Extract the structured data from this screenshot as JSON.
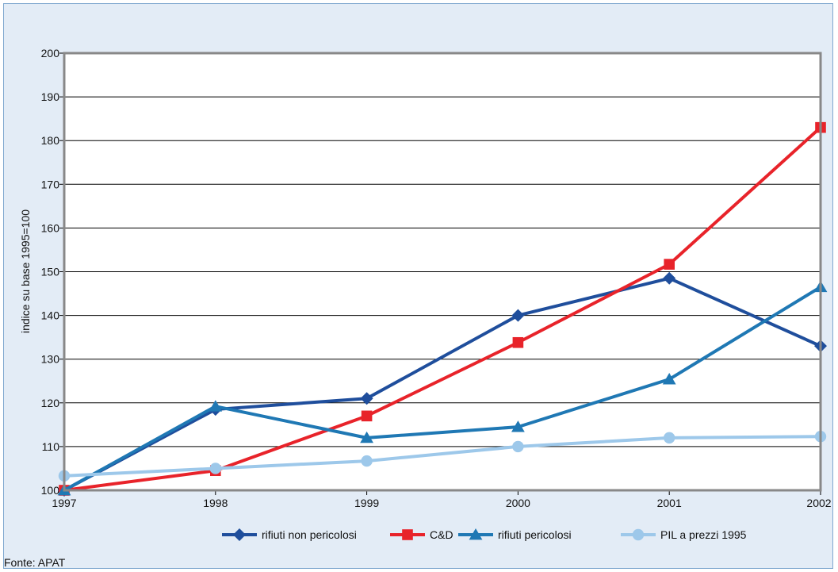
{
  "chart_data": {
    "type": "line",
    "title": "",
    "xlabel": "",
    "ylabel": "indice su base 1995=100",
    "categories": [
      "1997",
      "1998",
      "1999",
      "2000",
      "2001",
      "2002"
    ],
    "ylim": [
      100,
      200
    ],
    "yticks": [
      100,
      110,
      120,
      130,
      140,
      150,
      160,
      170,
      180,
      190,
      200
    ],
    "grid": "horizontal",
    "legend_position": "bottom",
    "series": [
      {
        "name": "rifiuti non pericolosi",
        "color": "#1f4e9c",
        "marker": "diamond",
        "values": [
          100,
          118.5,
          121,
          140,
          148.5,
          133
        ]
      },
      {
        "name": "C&D",
        "color": "#e8232a",
        "marker": "square",
        "values": [
          100,
          104.5,
          117,
          133.8,
          151.7,
          183
        ]
      },
      {
        "name": "rifiuti pericolosi",
        "color": "#1f78b4",
        "marker": "triangle",
        "values": [
          100,
          119.2,
          112,
          114.5,
          125.4,
          146.5
        ]
      },
      {
        "name": "PIL a prezzi 1995",
        "color": "#9dc8ea",
        "marker": "circle",
        "values": [
          103.3,
          105,
          106.7,
          110,
          112,
          112.3
        ]
      }
    ]
  },
  "source": "Fonte: APAT"
}
